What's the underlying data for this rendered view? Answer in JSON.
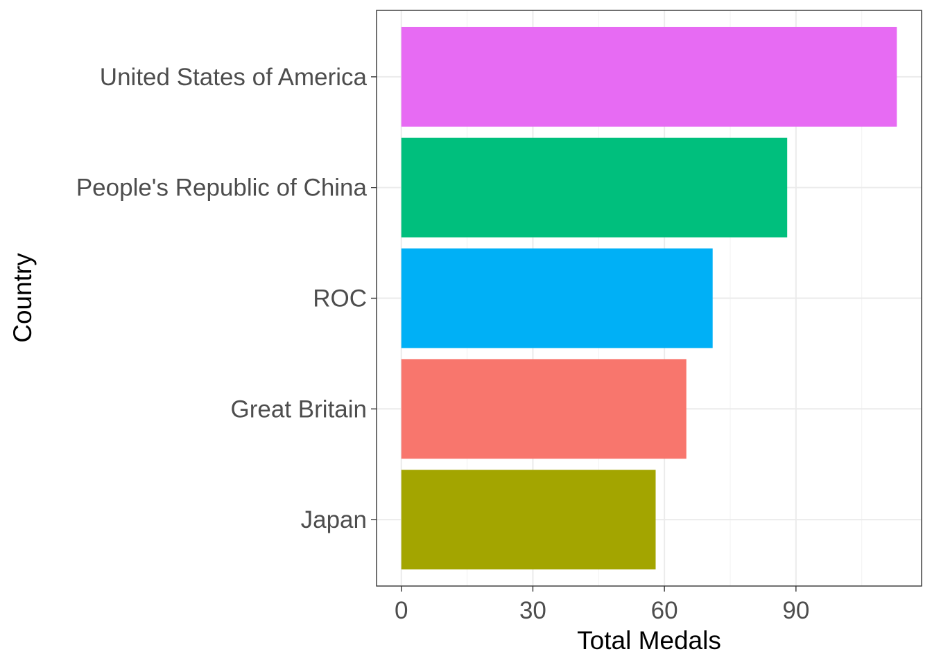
{
  "chart_data": {
    "type": "bar",
    "orientation": "horizontal",
    "xlabel": "Total Medals",
    "ylabel": "Country",
    "categories": [
      "United States of America",
      "People's Republic of China",
      "ROC",
      "Great Britain",
      "Japan"
    ],
    "values": [
      113,
      88,
      71,
      65,
      58
    ],
    "colors": [
      "#E76BF3",
      "#00BF7D",
      "#00B0F6",
      "#F8766D",
      "#A3A500"
    ],
    "xticks": [
      0,
      30,
      60,
      90
    ],
    "xlim": [
      -5.65,
      118.65
    ],
    "grid": true,
    "legend": "none"
  }
}
